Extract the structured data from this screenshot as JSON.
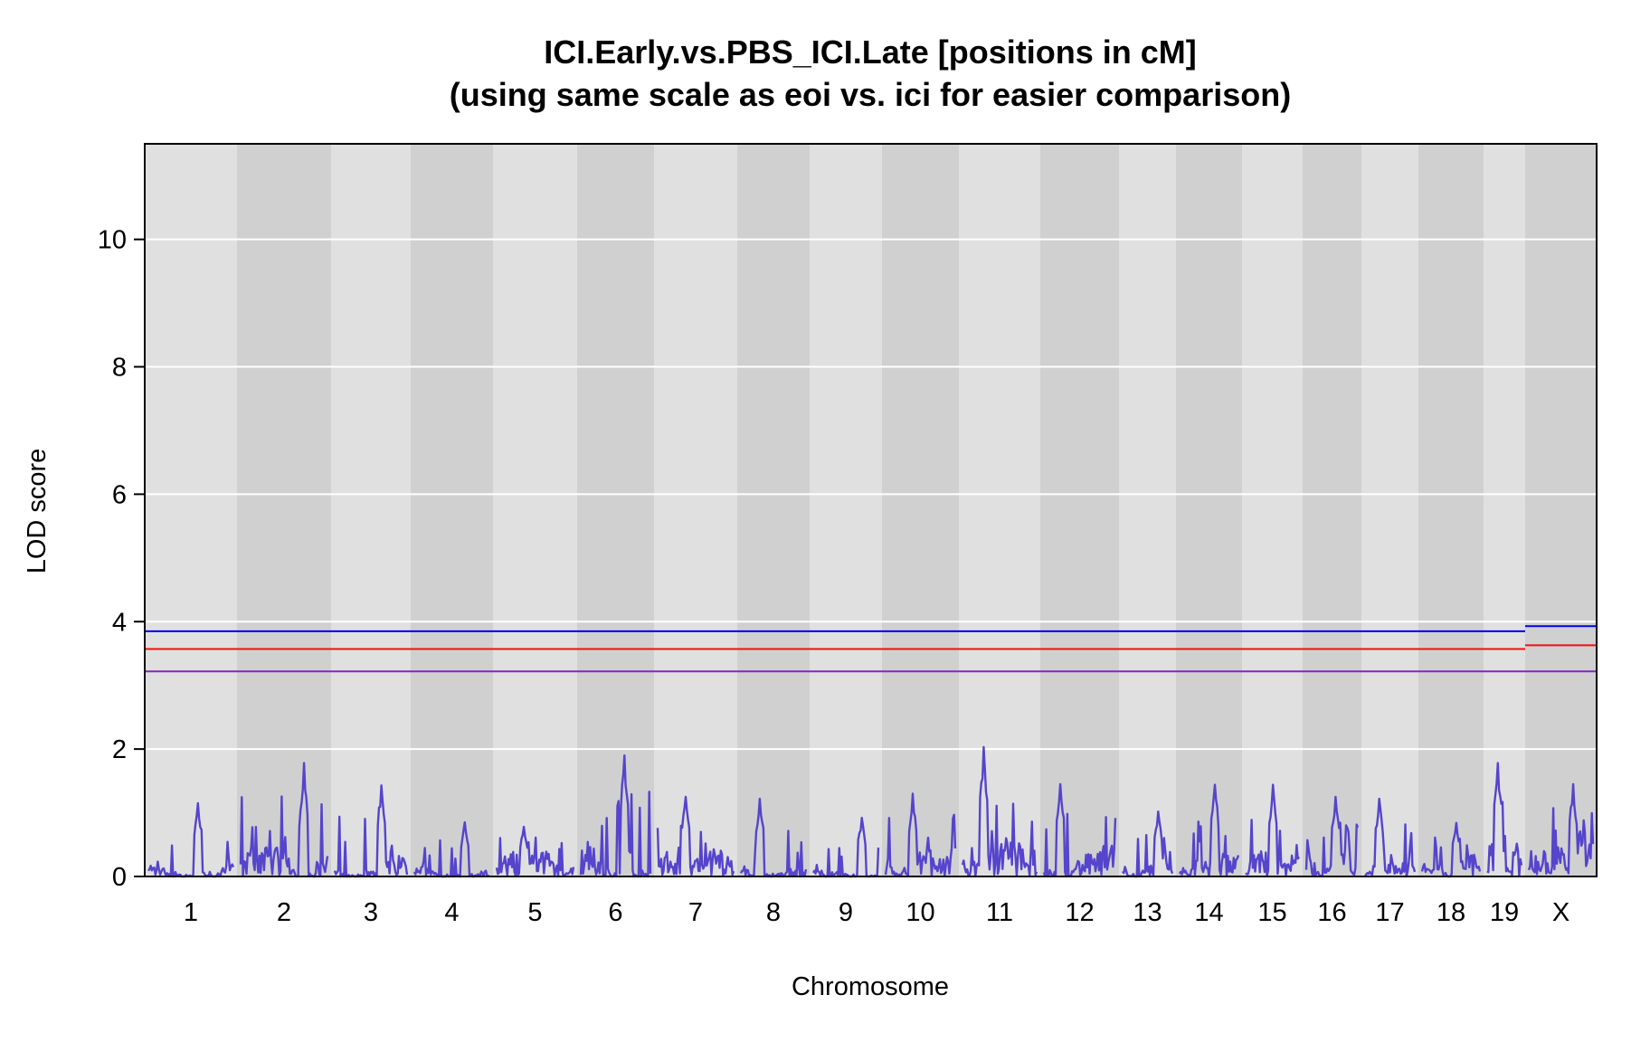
{
  "chart_data": {
    "type": "line",
    "title_lines": [
      "ICI.Early.vs.PBS_ICI.Late [positions in cM]",
      "(using same scale as eoi  vs. ici for easier comparison)"
    ],
    "xlabel": "Chromosome",
    "ylabel": "LOD score",
    "ylim": [
      0,
      11.5
    ],
    "y_ticks": [
      0,
      2,
      4,
      6,
      8,
      10
    ],
    "grid": true,
    "chromosomes": [
      {
        "name": "1",
        "peak": 1.15,
        "base": 0.35
      },
      {
        "name": "2",
        "peak": 1.78,
        "base": 0.6
      },
      {
        "name": "3",
        "peak": 1.43,
        "base": 0.3
      },
      {
        "name": "4",
        "peak": 0.85,
        "base": 0.25
      },
      {
        "name": "5",
        "peak": 0.78,
        "base": 0.4
      },
      {
        "name": "6",
        "peak": 1.9,
        "base": 0.75
      },
      {
        "name": "7",
        "peak": 1.25,
        "base": 0.35
      },
      {
        "name": "8",
        "peak": 1.22,
        "base": 0.3
      },
      {
        "name": "9",
        "peak": 0.92,
        "base": 0.25
      },
      {
        "name": "10",
        "peak": 1.3,
        "base": 0.5
      },
      {
        "name": "11",
        "peak": 2.03,
        "base": 0.4
      },
      {
        "name": "12",
        "peak": 1.45,
        "base": 0.35
      },
      {
        "name": "13",
        "peak": 1.02,
        "base": 0.3
      },
      {
        "name": "14",
        "peak": 1.44,
        "base": 0.35
      },
      {
        "name": "15",
        "peak": 1.44,
        "base": 0.4
      },
      {
        "name": "16",
        "peak": 1.25,
        "base": 0.35
      },
      {
        "name": "17",
        "peak": 1.22,
        "base": 0.3
      },
      {
        "name": "18",
        "peak": 0.84,
        "base": 0.35
      },
      {
        "name": "19",
        "peak": 1.78,
        "base": 0.6
      },
      {
        "name": "X",
        "peak": 1.45,
        "base": 0.7
      }
    ],
    "thresholds": {
      "autosome": [
        {
          "value": 3.85,
          "color": "#0000ee"
        },
        {
          "value": 3.57,
          "color": "#ee1111"
        },
        {
          "value": 3.22,
          "color": "#8822cc"
        }
      ],
      "x_chromosome": [
        {
          "value": 3.93,
          "color": "#0000ee"
        },
        {
          "value": 3.63,
          "color": "#ee1111"
        },
        {
          "value": 3.22,
          "color": "#8822cc"
        }
      ]
    },
    "colors": {
      "lod_curve": "#5544cc",
      "band_light": "#e0e0e0",
      "band_dark": "#d0d0d0",
      "grid": "#ffffff"
    }
  }
}
